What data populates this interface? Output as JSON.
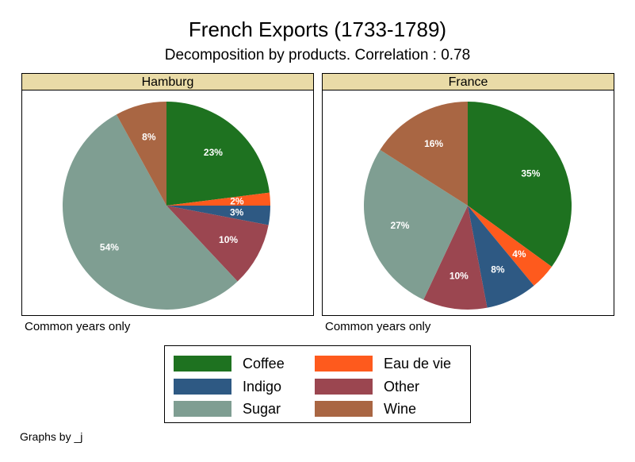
{
  "title": "French Exports (1733-1789)",
  "subtitle": "Decomposition by products. Correlation : 0.78",
  "byline": "Graphs by _j",
  "colors": {
    "Coffee": "#1e7220",
    "Eau de vie": "#fe5a1d",
    "Indigo": "#2e5983",
    "Other": "#9b4650",
    "Sugar": "#7f9e92",
    "Wine": "#a96643",
    "header_fill": "#e9dba7"
  },
  "legend": [
    {
      "label": "Coffee",
      "color": "#1e7220"
    },
    {
      "label": "Eau de vie",
      "color": "#fe5a1d"
    },
    {
      "label": "Indigo",
      "color": "#2e5983"
    },
    {
      "label": "Other",
      "color": "#9b4650"
    },
    {
      "label": "Sugar",
      "color": "#7f9e92"
    },
    {
      "label": "Wine",
      "color": "#a96643"
    }
  ],
  "panels": [
    {
      "name": "Hamburg",
      "note": "Common years only"
    },
    {
      "name": "France",
      "note": "Common years only"
    }
  ],
  "chart_data": [
    {
      "type": "pie",
      "title": "Hamburg",
      "categories": [
        "Coffee",
        "Eau de vie",
        "Indigo",
        "Other",
        "Sugar",
        "Wine"
      ],
      "values": [
        23,
        2,
        3,
        10,
        54,
        8
      ],
      "labels": [
        "23%",
        "2%",
        "3%",
        "10%",
        "54%",
        "8%"
      ],
      "note": "Common years only"
    },
    {
      "type": "pie",
      "title": "France",
      "categories": [
        "Coffee",
        "Eau de vie",
        "Indigo",
        "Other",
        "Sugar",
        "Wine"
      ],
      "values": [
        35,
        4,
        8,
        10,
        27,
        16
      ],
      "labels": [
        "35%",
        "4%",
        "8%",
        "10%",
        "27%",
        "16%"
      ],
      "note": "Common years only"
    }
  ]
}
